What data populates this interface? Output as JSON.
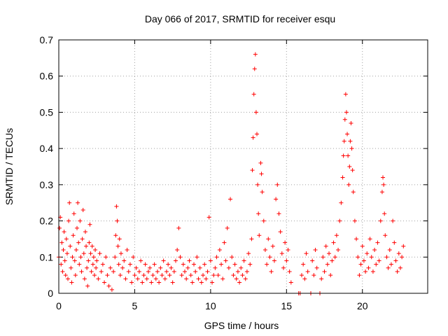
{
  "chart_data": {
    "type": "scatter",
    "title": "Day 066 of 2017, SRMTID for receiver esqu",
    "xlabel": "GPS time / hours",
    "ylabel": "SRMTID / TECUs",
    "xlim": [
      0,
      24.3
    ],
    "ylim": [
      0,
      0.7
    ],
    "x_ticks": [
      0,
      5,
      10,
      15,
      20
    ],
    "y_ticks": [
      0,
      0.1,
      0.2,
      0.3,
      0.4,
      0.5,
      0.6,
      0.7
    ],
    "x_tick_labels": [
      "0",
      "5",
      "10",
      "15",
      "20"
    ],
    "y_tick_labels": [
      "0",
      "0.1",
      "0.2",
      "0.3",
      "0.4",
      "0.5",
      "0.6",
      "0.7"
    ],
    "grid": true,
    "marker": "+",
    "series": [
      {
        "name": "SRMTID",
        "color": "#ff0000",
        "points": [
          [
            0.0,
            0.1
          ],
          [
            0.05,
            0.18
          ],
          [
            0.1,
            0.21
          ],
          [
            0.15,
            0.08
          ],
          [
            0.2,
            0.14
          ],
          [
            0.25,
            0.06
          ],
          [
            0.3,
            0.12
          ],
          [
            0.35,
            0.17
          ],
          [
            0.4,
            0.09
          ],
          [
            0.45,
            0.05
          ],
          [
            0.5,
            0.15
          ],
          [
            0.55,
            0.11
          ],
          [
            0.6,
            0.04
          ],
          [
            0.65,
            0.2
          ],
          [
            0.7,
            0.25
          ],
          [
            0.75,
            0.13
          ],
          [
            0.8,
            0.07
          ],
          [
            0.85,
            0.03
          ],
          [
            0.9,
            0.1
          ],
          [
            0.95,
            0.16
          ],
          [
            1.0,
            0.22
          ],
          [
            1.05,
            0.09
          ],
          [
            1.1,
            0.05
          ],
          [
            1.15,
            0.12
          ],
          [
            1.2,
            0.18
          ],
          [
            1.25,
            0.25
          ],
          [
            1.3,
            0.14
          ],
          [
            1.35,
            0.08
          ],
          [
            1.4,
            0.2
          ],
          [
            1.45,
            0.1
          ],
          [
            1.5,
            0.06
          ],
          [
            1.55,
            0.15
          ],
          [
            1.6,
            0.23
          ],
          [
            1.65,
            0.11
          ],
          [
            1.7,
            0.04
          ],
          [
            1.75,
            0.17
          ],
          [
            1.8,
            0.13
          ],
          [
            1.85,
            0.07
          ],
          [
            1.9,
            0.02
          ],
          [
            1.95,
            0.09
          ],
          [
            2.0,
            0.14
          ],
          [
            2.05,
            0.19
          ],
          [
            2.1,
            0.11
          ],
          [
            2.15,
            0.06
          ],
          [
            2.2,
            0.13
          ],
          [
            2.25,
            0.08
          ],
          [
            2.3,
            0.1
          ],
          [
            2.35,
            0.05
          ],
          [
            2.4,
            0.12
          ],
          [
            2.45,
            0.07
          ],
          [
            2.5,
            0.09
          ],
          [
            2.6,
            0.04
          ],
          [
            2.7,
            0.11
          ],
          [
            2.8,
            0.06
          ],
          [
            2.9,
            0.08
          ],
          [
            3.0,
            0.03
          ],
          [
            3.1,
            0.1
          ],
          [
            3.2,
            0.05
          ],
          [
            3.3,
            0.02
          ],
          [
            3.4,
            0.07
          ],
          [
            3.5,
            0.01
          ],
          [
            3.6,
            0.06
          ],
          [
            3.7,
            0.1
          ],
          [
            3.75,
            0.16
          ],
          [
            3.8,
            0.24
          ],
          [
            3.85,
            0.2
          ],
          [
            3.9,
            0.13
          ],
          [
            3.95,
            0.08
          ],
          [
            4.0,
            0.15
          ],
          [
            4.05,
            0.05
          ],
          [
            4.1,
            0.11
          ],
          [
            4.2,
            0.07
          ],
          [
            4.3,
            0.09
          ],
          [
            4.4,
            0.04
          ],
          [
            4.5,
            0.12
          ],
          [
            4.6,
            0.06
          ],
          [
            4.7,
            0.08
          ],
          [
            4.8,
            0.03
          ],
          [
            4.9,
            0.1
          ],
          [
            5.0,
            0.05
          ],
          [
            5.1,
            0.07
          ],
          [
            5.2,
            0.04
          ],
          [
            5.3,
            0.06
          ],
          [
            5.4,
            0.09
          ],
          [
            5.5,
            0.03
          ],
          [
            5.6,
            0.05
          ],
          [
            5.7,
            0.08
          ],
          [
            5.8,
            0.04
          ],
          [
            5.9,
            0.06
          ],
          [
            6.0,
            0.07
          ],
          [
            6.1,
            0.03
          ],
          [
            6.2,
            0.05
          ],
          [
            6.3,
            0.08
          ],
          [
            6.4,
            0.04
          ],
          [
            6.5,
            0.06
          ],
          [
            6.6,
            0.03
          ],
          [
            6.7,
            0.07
          ],
          [
            6.8,
            0.05
          ],
          [
            6.9,
            0.09
          ],
          [
            7.0,
            0.04
          ],
          [
            7.1,
            0.06
          ],
          [
            7.2,
            0.08
          ],
          [
            7.3,
            0.05
          ],
          [
            7.4,
            0.07
          ],
          [
            7.5,
            0.03
          ],
          [
            7.6,
            0.06
          ],
          [
            7.7,
            0.09
          ],
          [
            7.8,
            0.12
          ],
          [
            7.9,
            0.18
          ],
          [
            8.0,
            0.1
          ],
          [
            8.1,
            0.05
          ],
          [
            8.2,
            0.08
          ],
          [
            8.3,
            0.06
          ],
          [
            8.4,
            0.04
          ],
          [
            8.5,
            0.07
          ],
          [
            8.6,
            0.09
          ],
          [
            8.7,
            0.05
          ],
          [
            8.8,
            0.03
          ],
          [
            8.9,
            0.08
          ],
          [
            9.0,
            0.06
          ],
          [
            9.1,
            0.1
          ],
          [
            9.2,
            0.04
          ],
          [
            9.3,
            0.07
          ],
          [
            9.4,
            0.03
          ],
          [
            9.5,
            0.05
          ],
          [
            9.6,
            0.08
          ],
          [
            9.7,
            0.04
          ],
          [
            9.8,
            0.06
          ],
          [
            9.9,
            0.21
          ],
          [
            10.0,
            0.09
          ],
          [
            10.1,
            0.03
          ],
          [
            10.2,
            0.05
          ],
          [
            10.3,
            0.07
          ],
          [
            10.4,
            0.1
          ],
          [
            10.5,
            0.05
          ],
          [
            10.6,
            0.12
          ],
          [
            10.7,
            0.08
          ],
          [
            10.8,
            0.04
          ],
          [
            10.9,
            0.14
          ],
          [
            11.0,
            0.09
          ],
          [
            11.1,
            0.18
          ],
          [
            11.2,
            0.07
          ],
          [
            11.3,
            0.26
          ],
          [
            11.4,
            0.1
          ],
          [
            11.5,
            0.05
          ],
          [
            11.6,
            0.08
          ],
          [
            11.7,
            0.04
          ],
          [
            11.8,
            0.06
          ],
          [
            11.9,
            0.03
          ],
          [
            12.0,
            0.07
          ],
          [
            12.1,
            0.05
          ],
          [
            12.2,
            0.09
          ],
          [
            12.3,
            0.04
          ],
          [
            12.4,
            0.06
          ],
          [
            12.5,
            0.11
          ],
          [
            12.6,
            0.08
          ],
          [
            12.7,
            0.15
          ],
          [
            12.75,
            0.34
          ],
          [
            12.8,
            0.43
          ],
          [
            12.85,
            0.55
          ],
          [
            12.9,
            0.62
          ],
          [
            12.95,
            0.66
          ],
          [
            13.0,
            0.5
          ],
          [
            13.05,
            0.44
          ],
          [
            13.1,
            0.3
          ],
          [
            13.15,
            0.22
          ],
          [
            13.2,
            0.16
          ],
          [
            13.3,
            0.36
          ],
          [
            13.35,
            0.33
          ],
          [
            13.4,
            0.28
          ],
          [
            13.5,
            0.2
          ],
          [
            13.6,
            0.12
          ],
          [
            13.7,
            0.08
          ],
          [
            13.8,
            0.15
          ],
          [
            13.9,
            0.1
          ],
          [
            14.0,
            0.06
          ],
          [
            14.1,
            0.13
          ],
          [
            14.2,
            0.09
          ],
          [
            14.3,
            0.26
          ],
          [
            14.4,
            0.3
          ],
          [
            14.5,
            0.22
          ],
          [
            14.6,
            0.17
          ],
          [
            14.7,
            0.11
          ],
          [
            14.8,
            0.07
          ],
          [
            14.9,
            0.14
          ],
          [
            15.0,
            0.09
          ],
          [
            15.1,
            0.12
          ],
          [
            15.2,
            0.06
          ],
          [
            15.3,
            0.03
          ],
          [
            15.8,
            0.0
          ],
          [
            15.9,
            0.0
          ],
          [
            16.0,
            0.05
          ],
          [
            16.1,
            0.08
          ],
          [
            16.2,
            0.04
          ],
          [
            16.3,
            0.11
          ],
          [
            16.4,
            0.06
          ],
          [
            16.6,
            0.0
          ],
          [
            16.7,
            0.09
          ],
          [
            16.8,
            0.05
          ],
          [
            16.9,
            0.12
          ],
          [
            17.0,
            0.07
          ],
          [
            17.2,
            0.0
          ],
          [
            17.3,
            0.04
          ],
          [
            17.4,
            0.1
          ],
          [
            17.5,
            0.06
          ],
          [
            17.6,
            0.13
          ],
          [
            17.7,
            0.08
          ],
          [
            17.8,
            0.11
          ],
          [
            17.9,
            0.05
          ],
          [
            18.0,
            0.09
          ],
          [
            18.1,
            0.14
          ],
          [
            18.2,
            0.1
          ],
          [
            18.3,
            0.16
          ],
          [
            18.4,
            0.12
          ],
          [
            18.5,
            0.2
          ],
          [
            18.6,
            0.25
          ],
          [
            18.7,
            0.32
          ],
          [
            18.75,
            0.38
          ],
          [
            18.8,
            0.42
          ],
          [
            18.85,
            0.48
          ],
          [
            18.9,
            0.55
          ],
          [
            18.95,
            0.5
          ],
          [
            19.0,
            0.44
          ],
          [
            19.05,
            0.38
          ],
          [
            19.1,
            0.3
          ],
          [
            19.15,
            0.35
          ],
          [
            19.2,
            0.42
          ],
          [
            19.25,
            0.47
          ],
          [
            19.3,
            0.4
          ],
          [
            19.35,
            0.34
          ],
          [
            19.4,
            0.28
          ],
          [
            19.5,
            0.2
          ],
          [
            19.6,
            0.15
          ],
          [
            19.7,
            0.1
          ],
          [
            19.8,
            0.05
          ],
          [
            19.9,
            0.08
          ],
          [
            20.0,
            0.13
          ],
          [
            20.1,
            0.09
          ],
          [
            20.2,
            0.06
          ],
          [
            20.3,
            0.11
          ],
          [
            20.4,
            0.07
          ],
          [
            20.5,
            0.15
          ],
          [
            20.6,
            0.1
          ],
          [
            20.7,
            0.06
          ],
          [
            20.8,
            0.12
          ],
          [
            20.9,
            0.08
          ],
          [
            21.0,
            0.14
          ],
          [
            21.1,
            0.09
          ],
          [
            21.2,
            0.2
          ],
          [
            21.3,
            0.28
          ],
          [
            21.35,
            0.32
          ],
          [
            21.4,
            0.3
          ],
          [
            21.45,
            0.22
          ],
          [
            21.5,
            0.16
          ],
          [
            21.6,
            0.1
          ],
          [
            21.7,
            0.07
          ],
          [
            21.8,
            0.12
          ],
          [
            21.9,
            0.08
          ],
          [
            22.0,
            0.2
          ],
          [
            22.1,
            0.14
          ],
          [
            22.2,
            0.09
          ],
          [
            22.3,
            0.06
          ],
          [
            22.4,
            0.11
          ],
          [
            22.5,
            0.07
          ],
          [
            22.6,
            0.1
          ],
          [
            22.7,
            0.13
          ]
        ]
      }
    ]
  }
}
